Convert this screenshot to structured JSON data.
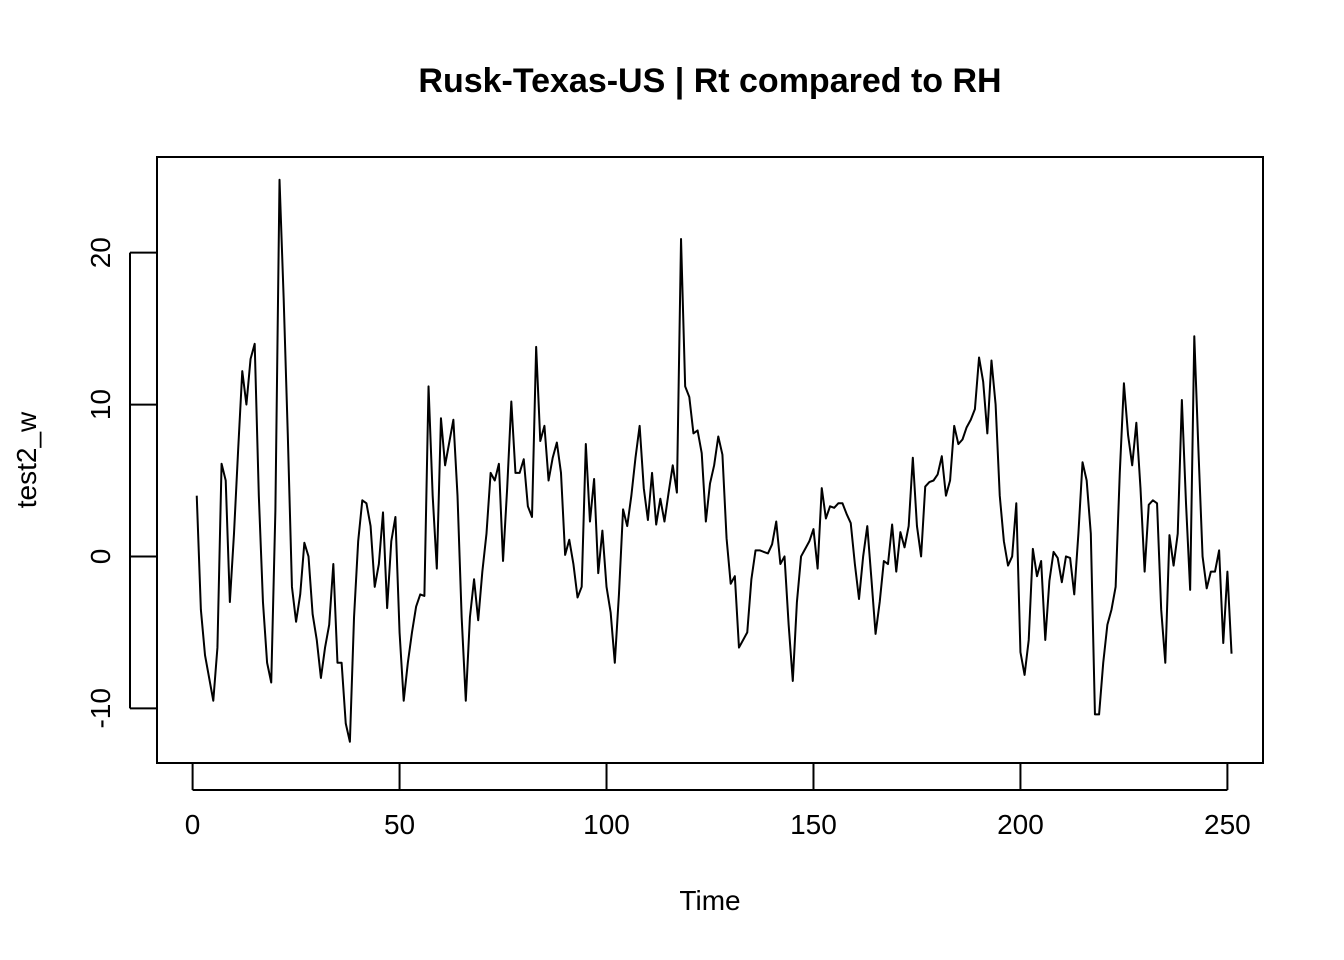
{
  "chart_data": {
    "type": "line",
    "title": "Rusk-Texas-US | Rt compared to RH",
    "xlabel": "Time",
    "ylabel": "test2_w",
    "xlim": [
      -8.6,
      258.6
    ],
    "ylim": [
      -13.6,
      26.3
    ],
    "xticks": [
      0,
      50,
      100,
      150,
      200,
      250
    ],
    "yticks": [
      -10,
      0,
      10,
      20
    ],
    "grid": false,
    "color": "#000000",
    "series": [
      {
        "values": [
          4.0,
          -3.5,
          -6.5,
          -8.0,
          -9.5,
          -6.0,
          6.1,
          5.0,
          -3.0,
          1.5,
          7.0,
          12.2,
          10.0,
          13.0,
          14.0,
          4.0,
          -3.0,
          -7.0,
          -8.3,
          3.0,
          24.8,
          17.0,
          8.0,
          -2.0,
          -4.3,
          -2.5,
          0.9,
          0.0,
          -3.8,
          -5.5,
          -8.0,
          -6.0,
          -4.5,
          -0.5,
          -7.0,
          -7.0,
          -11.0,
          -12.2,
          -4.0,
          1.0,
          3.7,
          3.5,
          2.0,
          -2.0,
          -0.5,
          2.9,
          -3.4,
          1.0,
          2.6,
          -5.0,
          -9.5,
          -7.0,
          -5.0,
          -3.3,
          -2.5,
          -2.6,
          11.2,
          4.0,
          -0.8,
          9.1,
          6.0,
          7.5,
          9.0,
          4.0,
          -4.0,
          -9.5,
          -4.0,
          -1.5,
          -4.2,
          -1.0,
          1.5,
          5.5,
          5.0,
          6.1,
          -0.3,
          4.5,
          10.2,
          5.5,
          5.5,
          6.4,
          3.3,
          2.6,
          13.8,
          7.6,
          8.6,
          5.0,
          6.5,
          7.5,
          5.5,
          0.1,
          1.1,
          -0.5,
          -2.7,
          -2.0,
          7.4,
          2.3,
          5.1,
          -1.1,
          1.7,
          -2.0,
          -3.7,
          -7.0,
          -2.5,
          3.1,
          2.0,
          4.0,
          6.5,
          8.6,
          4.5,
          2.4,
          5.5,
          2.1,
          3.8,
          2.3,
          4.2,
          6.0,
          4.2,
          20.9,
          11.2,
          10.5,
          8.1,
          8.3,
          6.8,
          2.3,
          4.8,
          6.0,
          7.9,
          6.7,
          1.2,
          -1.8,
          -1.3,
          -6.0,
          -5.5,
          -5.0,
          -1.5,
          0.4,
          0.4,
          0.3,
          0.2,
          0.8,
          2.3,
          -0.5,
          0.0,
          -4.5,
          -8.2,
          -3.0,
          0.0,
          0.5,
          1.0,
          1.8,
          -0.8,
          4.5,
          2.5,
          3.3,
          3.2,
          3.5,
          3.5,
          2.8,
          2.2,
          -0.5,
          -2.8,
          0.0,
          2.0,
          -1.5,
          -5.1,
          -3.0,
          -0.3,
          -0.5,
          2.1,
          -1.0,
          1.6,
          0.6,
          2.0,
          6.5,
          2.0,
          0.0,
          4.6,
          4.9,
          5.0,
          5.4,
          6.6,
          4.0,
          5.0,
          8.6,
          7.4,
          7.7,
          8.5,
          9.0,
          9.7,
          13.1,
          11.5,
          8.1,
          12.9,
          10.0,
          4.0,
          1.0,
          -0.6,
          0.0,
          3.5,
          -6.3,
          -7.8,
          -5.5,
          0.5,
          -1.3,
          -0.3,
          -5.5,
          -1.6,
          0.3,
          -0.1,
          -1.7,
          0.0,
          -0.1,
          -2.5,
          1.5,
          6.2,
          5.0,
          1.5,
          -10.4,
          -10.4,
          -7.0,
          -4.5,
          -3.5,
          -2.0,
          5.5,
          11.4,
          8.0,
          6.0,
          8.8,
          4.5,
          -1.0,
          3.4,
          3.7,
          3.5,
          -3.5,
          -7.0,
          1.4,
          -0.6,
          1.5,
          10.3,
          3.5,
          -2.2,
          14.5,
          7.0,
          0.0,
          -2.1,
          -1.0,
          -1.0,
          0.4,
          -5.7,
          -1.0,
          -6.4
        ]
      }
    ]
  }
}
